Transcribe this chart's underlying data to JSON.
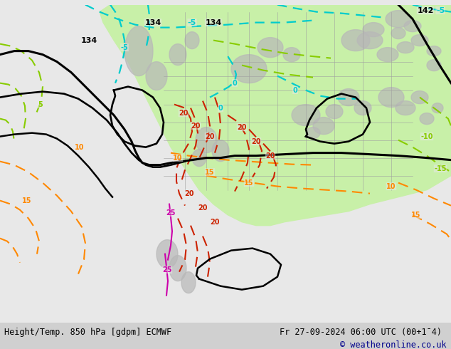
{
  "fig_width": 6.34,
  "fig_height": 4.9,
  "dpi": 100,
  "bg_color": "#e8e8e8",
  "map_bg_color": "#e8e8e8",
  "bottom_bar_color": "#d0d0d0",
  "bottom_label_left": "Height/Temp. 850 hPa [gdpm] ECMWF",
  "bottom_label_right": "Fr 27-09-2024 06:00 UTC (00+1¯4)",
  "bottom_label_right2": "© weatheronline.co.uk",
  "bottom_label_color": "#000000",
  "copyright_color": "#00008b",
  "label_fontsize": 8.5,
  "copyright_fontsize": 8.5,
  "green_fill": "#c8f0a8",
  "gray_fill": "#b8b8b8",
  "black_line": "#000000",
  "cyan_line": "#00cccc",
  "lime_line": "#88cc00",
  "orange_line": "#ff8800",
  "red_line": "#cc2200",
  "magenta_line": "#cc00aa",
  "dark_red_line": "#880000"
}
